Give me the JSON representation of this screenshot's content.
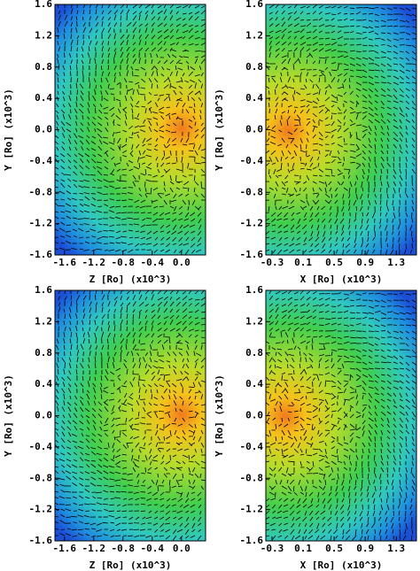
{
  "chart_data": [
    {
      "type": "heatmap",
      "xlabel": "Z [Ro] (x10^3)",
      "ylabel": "Y [Ro] (x10^3)",
      "xlim": [
        -1.73,
        0.33
      ],
      "ylim": [
        -1.6,
        1.6
      ],
      "xticks": [
        -1.6,
        -1.2,
        -0.8,
        -0.4,
        {
          "value": 0,
          "label": "0.0"
        }
      ],
      "yticks": [
        -1.6,
        -1.2,
        -0.8,
        -0.4,
        {
          "value": 0,
          "label": "0.0"
        },
        0.4,
        0.8,
        1.2,
        1.6
      ]
    },
    {
      "type": "heatmap",
      "xlabel": "X [Ro] (x10^3)",
      "ylabel": "Y [Ro] (x10^3)",
      "xlim": [
        -0.38,
        1.56
      ],
      "ylim": [
        -1.6,
        1.6
      ],
      "xticks": [
        -0.3,
        0.1,
        0.5,
        0.9,
        1.3
      ],
      "yticks": [
        -1.6,
        -1.2,
        -0.8,
        -0.4,
        {
          "value": 0,
          "label": "0.0"
        },
        0.4,
        0.8,
        1.2,
        1.6
      ]
    },
    {
      "type": "heatmap",
      "xlabel": "Z [Ro] (x10^3)",
      "ylabel": "Y [Ro] (x10^3)",
      "xlim": [
        -1.73,
        0.33
      ],
      "ylim": [
        -1.6,
        1.6
      ],
      "xticks": [
        -1.6,
        -1.2,
        -0.8,
        -0.4,
        {
          "value": 0,
          "label": "0.0"
        }
      ],
      "yticks": [
        -1.6,
        -1.2,
        -0.8,
        -0.4,
        {
          "value": 0,
          "label": "0.0"
        },
        0.4,
        0.8,
        1.2,
        1.6
      ]
    },
    {
      "type": "heatmap",
      "xlabel": "X [Ro] (x10^3)",
      "ylabel": "Y [Ro] (x10^3)",
      "xlim": [
        -0.38,
        1.56
      ],
      "ylim": [
        -1.6,
        1.6
      ],
      "xticks": [
        -0.3,
        0.1,
        0.5,
        0.9,
        1.3
      ],
      "yticks": [
        -1.6,
        -1.2,
        -0.8,
        -0.4,
        {
          "value": 0,
          "label": "0.0"
        },
        0.4,
        0.8,
        1.2,
        1.6
      ]
    }
  ]
}
